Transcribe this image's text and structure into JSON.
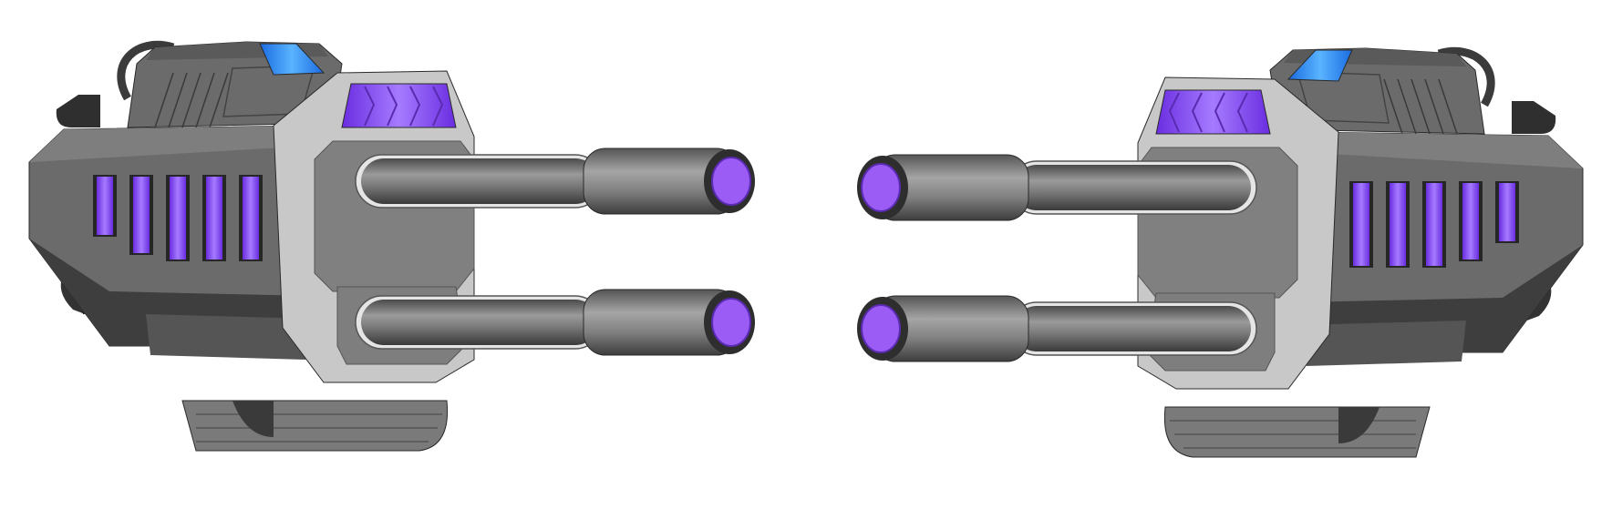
{
  "scene": {
    "background": "#ffffff",
    "sprites": [
      {
        "name": "twin-cannon-turret",
        "facing": "right"
      },
      {
        "name": "twin-cannon-turret",
        "facing": "left"
      }
    ]
  },
  "palette": {
    "hull_dark": "#3b3b3b",
    "hull_mid": "#6b6b6b",
    "hull_light": "#8a8a8a",
    "plate_light": "#c8c8c8",
    "glow_purple": "#9b5cf6",
    "glow_blue": "#2f8cff",
    "outline": "#2a2a2a"
  }
}
